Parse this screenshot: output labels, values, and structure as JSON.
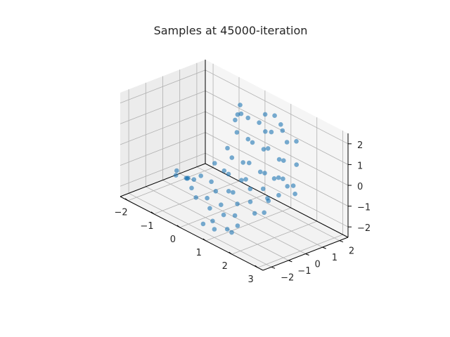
{
  "chart_data": {
    "type": "scatter",
    "projection": "3d",
    "title": "Samples at 45000-iteration",
    "xlabel": "",
    "ylabel": "",
    "zlabel": "",
    "grid": true,
    "legend": false,
    "xlim": [
      -2.3,
      3.2
    ],
    "ylim": [
      -2.5,
      2.5
    ],
    "zlim": [
      -2.5,
      2.5
    ],
    "x_ticks": [
      -2,
      -1,
      0,
      1,
      2,
      3
    ],
    "x_tick_labels": [
      "−2",
      "−1",
      "0",
      "1",
      "2",
      "3"
    ],
    "y_ticks": [
      -2,
      -1,
      0,
      1,
      2
    ],
    "y_tick_labels": [
      "−2",
      "−1",
      "0",
      "1",
      "2"
    ],
    "z_ticks": [
      -2,
      -1,
      0,
      1,
      2
    ],
    "z_tick_labels": [
      "−2",
      "−1",
      "0",
      "1",
      "2"
    ],
    "colors": {
      "marker": "#1f77b4",
      "pane_fill": "#f2f2f2",
      "grid": "#b0b0b0",
      "axis": "#000000"
    },
    "marker_alpha": 0.6,
    "series": [
      {
        "points": [
          [
            -0.2,
            1.4,
            1.6
          ],
          [
            -0.4,
            1.5,
            1.4
          ],
          [
            -0.3,
            1.2,
            1.3
          ],
          [
            0.0,
            1.5,
            1.5
          ],
          [
            0.3,
            1.7,
            1.4
          ],
          [
            0.6,
            1.6,
            1.2
          ],
          [
            0.9,
            1.5,
            1.4
          ],
          [
            1.2,
            1.7,
            1.6
          ],
          [
            1.5,
            1.5,
            1.3
          ],
          [
            1.8,
            1.6,
            1.5
          ],
          [
            -0.1,
            1.0,
            0.9
          ],
          [
            0.2,
            1.2,
            0.7
          ],
          [
            0.5,
            1.0,
            0.8
          ],
          [
            0.8,
            1.2,
            0.6
          ],
          [
            1.1,
            1.0,
            0.9
          ],
          [
            1.4,
            1.2,
            0.5
          ],
          [
            1.7,
            1.0,
            0.7
          ],
          [
            2.0,
            1.3,
            0.6
          ],
          [
            -0.2,
            0.6,
            0.2
          ],
          [
            0.1,
            0.4,
            0.0
          ],
          [
            0.4,
            0.6,
            -0.1
          ],
          [
            0.7,
            0.5,
            0.1
          ],
          [
            1.0,
            0.7,
            -0.2
          ],
          [
            1.3,
            0.5,
            0.0
          ],
          [
            1.6,
            0.6,
            -0.1
          ],
          [
            1.9,
            0.4,
            0.2
          ],
          [
            -0.3,
            0.0,
            -0.4
          ],
          [
            0.0,
            0.1,
            -0.6
          ],
          [
            0.3,
            -0.1,
            -0.5
          ],
          [
            0.6,
            0.2,
            -0.7
          ],
          [
            0.9,
            0.0,
            -0.4
          ],
          [
            1.2,
            -0.2,
            -0.6
          ],
          [
            1.5,
            0.1,
            -0.5
          ],
          [
            1.8,
            -0.1,
            -0.7
          ],
          [
            -0.1,
            -0.5,
            -1.0
          ],
          [
            0.2,
            -0.7,
            -1.2
          ],
          [
            0.5,
            -0.4,
            -1.1
          ],
          [
            0.8,
            -0.6,
            -0.9
          ],
          [
            1.1,
            -0.8,
            -1.2
          ],
          [
            1.4,
            -0.5,
            -1.0
          ],
          [
            1.7,
            -0.7,
            -1.3
          ],
          [
            2.0,
            -0.6,
            -1.1
          ],
          [
            -0.6,
            -0.9,
            -1.5
          ],
          [
            -0.3,
            -1.1,
            -1.7
          ],
          [
            0.0,
            -0.9,
            -1.6
          ],
          [
            0.3,
            -1.2,
            -1.8
          ],
          [
            0.6,
            -1.0,
            -1.5
          ],
          [
            0.9,
            -1.3,
            -1.7
          ],
          [
            1.2,
            -1.1,
            -1.6
          ],
          [
            1.5,
            -1.4,
            -1.8
          ],
          [
            -1.0,
            -0.5,
            -1.4
          ],
          [
            -1.2,
            -0.3,
            -1.6
          ],
          [
            -0.9,
            -0.7,
            -1.3
          ],
          [
            -1.4,
            -0.6,
            -1.5
          ],
          [
            -0.7,
            -0.2,
            -1.2
          ],
          [
            -1.1,
            0.0,
            -1.7
          ],
          [
            -1.5,
            -0.4,
            -1.4
          ],
          [
            2.2,
            0.2,
            0.4
          ],
          [
            2.4,
            0.5,
            0.1
          ],
          [
            2.3,
            -0.2,
            -0.2
          ],
          [
            2.5,
            0.0,
            0.3
          ],
          [
            2.1,
            -0.5,
            -0.5
          ],
          [
            2.6,
            0.3,
            -0.1
          ],
          [
            0.8,
            -1.8,
            -1.9
          ],
          [
            1.0,
            -2.0,
            -2.1
          ],
          [
            1.3,
            -1.7,
            -2.0
          ],
          [
            0.5,
            -1.9,
            -2.2
          ],
          [
            1.6,
            -1.9,
            -1.9
          ],
          [
            0.4,
            1.9,
            1.8
          ],
          [
            0.7,
            2.0,
            1.9
          ],
          [
            1.0,
            1.9,
            1.7
          ],
          [
            -0.5,
            1.8,
            1.7
          ]
        ]
      }
    ]
  }
}
